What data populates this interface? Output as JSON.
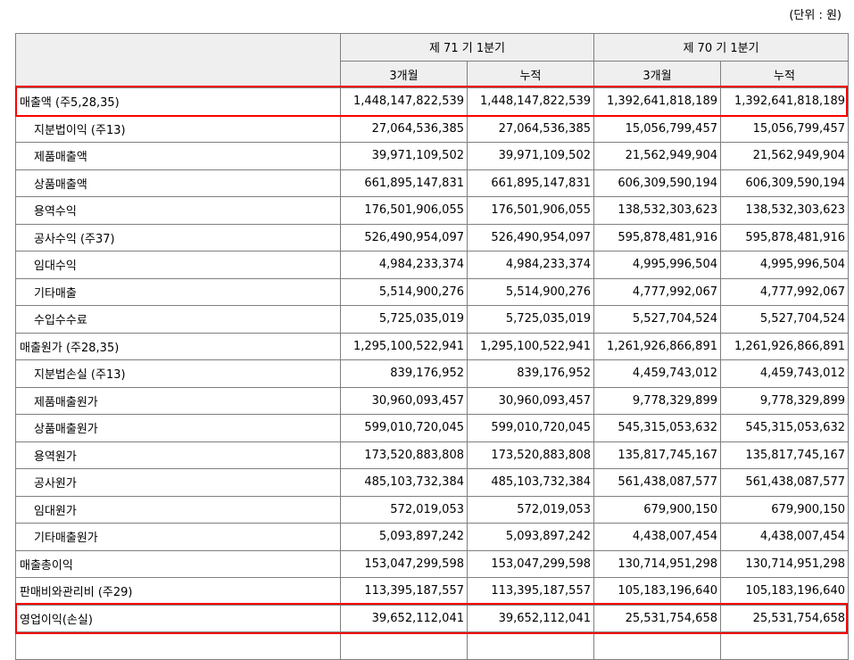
{
  "unit_label": "(단위 : 원)",
  "header": {
    "period_current": "제 71 기 1분기",
    "period_prior": "제 70 기 1분기",
    "sub": [
      "3개월",
      "누적",
      "3개월",
      "누적"
    ]
  },
  "rows": [
    {
      "label": "매출액 (주5,28,35)",
      "values": [
        "1,448,147,822,539",
        "1,448,147,822,539",
        "1,392,641,818,189",
        "1,392,641,818,189"
      ]
    },
    {
      "label": "지분법이익 (주13)",
      "values": [
        "27,064,536,385",
        "27,064,536,385",
        "15,056,799,457",
        "15,056,799,457"
      ]
    },
    {
      "label": "제품매출액",
      "values": [
        "39,971,109,502",
        "39,971,109,502",
        "21,562,949,904",
        "21,562,949,904"
      ]
    },
    {
      "label": "상품매출액",
      "values": [
        "661,895,147,831",
        "661,895,147,831",
        "606,309,590,194",
        "606,309,590,194"
      ]
    },
    {
      "label": "용역수익",
      "values": [
        "176,501,906,055",
        "176,501,906,055",
        "138,532,303,623",
        "138,532,303,623"
      ]
    },
    {
      "label": "공사수익 (주37)",
      "values": [
        "526,490,954,097",
        "526,490,954,097",
        "595,878,481,916",
        "595,878,481,916"
      ]
    },
    {
      "label": "임대수익",
      "values": [
        "4,984,233,374",
        "4,984,233,374",
        "4,995,996,504",
        "4,995,996,504"
      ]
    },
    {
      "label": "기타매출",
      "values": [
        "5,514,900,276",
        "5,514,900,276",
        "4,777,992,067",
        "4,777,992,067"
      ]
    },
    {
      "label": "수입수수료",
      "values": [
        "5,725,035,019",
        "5,725,035,019",
        "5,527,704,524",
        "5,527,704,524"
      ]
    },
    {
      "label": "매출원가 (주28,35)",
      "values": [
        "1,295,100,522,941",
        "1,295,100,522,941",
        "1,261,926,866,891",
        "1,261,926,866,891"
      ]
    },
    {
      "label": "지분법손실 (주13)",
      "values": [
        "839,176,952",
        "839,176,952",
        "4,459,743,012",
        "4,459,743,012"
      ]
    },
    {
      "label": "제품매출원가",
      "values": [
        "30,960,093,457",
        "30,960,093,457",
        "9,778,329,899",
        "9,778,329,899"
      ]
    },
    {
      "label": "상품매출원가",
      "values": [
        "599,010,720,045",
        "599,010,720,045",
        "545,315,053,632",
        "545,315,053,632"
      ]
    },
    {
      "label": "용역원가",
      "values": [
        "173,520,883,808",
        "173,520,883,808",
        "135,817,745,167",
        "135,817,745,167"
      ]
    },
    {
      "label": "공사원가",
      "values": [
        "485,103,732,384",
        "485,103,732,384",
        "561,438,087,577",
        "561,438,087,577"
      ]
    },
    {
      "label": "임대원가",
      "values": [
        "572,019,053",
        "572,019,053",
        "679,900,150",
        "679,900,150"
      ]
    },
    {
      "label": "기타매출원가",
      "values": [
        "5,093,897,242",
        "5,093,897,242",
        "4,438,007,454",
        "4,438,007,454"
      ]
    },
    {
      "label": "매출총이익",
      "values": [
        "153,047,299,598",
        "153,047,299,598",
        "130,714,951,298",
        "130,714,951,298"
      ]
    },
    {
      "label": "판매비와관리비 (주29)",
      "values": [
        "113,395,187,557",
        "113,395,187,557",
        "105,183,196,640",
        "105,183,196,640"
      ]
    },
    {
      "label": "영업이익(손실)",
      "values": [
        "39,652,112,041",
        "39,652,112,041",
        "25,531,754,658",
        "25,531,754,658"
      ]
    },
    {
      "label": "",
      "values": [
        "",
        "",
        "",
        ""
      ]
    }
  ],
  "highlight_color": "#ff0000"
}
